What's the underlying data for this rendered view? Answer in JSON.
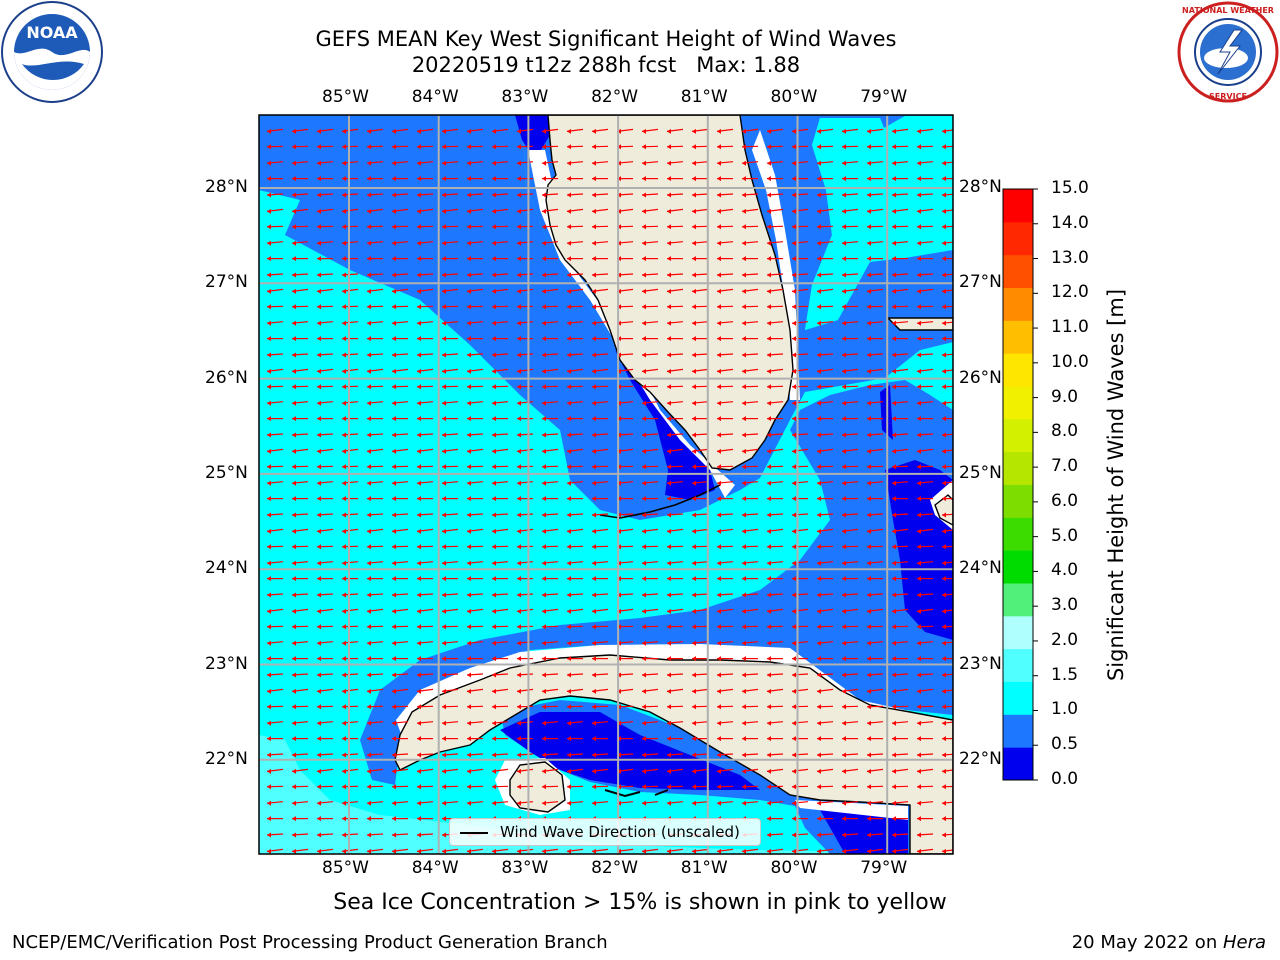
{
  "title": {
    "line1": "GEFS MEAN Key West Significant Height of Wind Waves",
    "line2": "20220519 t12z 288h fcst   Max: 1.88"
  },
  "logos": {
    "left": {
      "icon": "noaa-logo-icon",
      "text": "NOAA"
    },
    "right": {
      "icon": "nws-logo-icon",
      "text": "NATIONAL WEATHER SERVICE"
    }
  },
  "map": {
    "lon_labels": [
      "85°W",
      "84°W",
      "83°W",
      "82°W",
      "81°W",
      "80°W",
      "79°W"
    ],
    "lat_labels": [
      "28°N",
      "27°N",
      "26°N",
      "25°N",
      "24°N",
      "23°N",
      "22°N"
    ],
    "land_color": "#efecdc",
    "arrow_color": "#ff0000",
    "gridline_color": "#b0b0b0",
    "legend_label": "Wind Wave Direction (unscaled)"
  },
  "colorbar": {
    "title": "Significant Height of Wind Waves [m]",
    "tick_labels": [
      "0.0",
      "0.5",
      "1.0",
      "1.5",
      "2.0",
      "3.0",
      "4.0",
      "5.0",
      "6.0",
      "7.0",
      "8.0",
      "9.0",
      "10.0",
      "11.0",
      "12.0",
      "13.0",
      "14.0",
      "15.0"
    ],
    "colors": [
      "#0000ee",
      "#1e78ff",
      "#00ffff",
      "#50ffff",
      "#b0ffff",
      "#50f07a",
      "#00dc00",
      "#3cdc00",
      "#7ddc00",
      "#b4e600",
      "#d2f000",
      "#f0f000",
      "#ffe600",
      "#ffbe00",
      "#ff8c00",
      "#ff5000",
      "#ff2800",
      "#ff0000"
    ]
  },
  "chart_data": {
    "type": "heatmap",
    "title": "GEFS MEAN Key West Significant Height of Wind Waves",
    "subtitle": "20220519 t12z 288h fcst   Max: 1.88",
    "xlabel": "",
    "ylabel": "",
    "x_ticks": [
      "85°W",
      "84°W",
      "83°W",
      "82°W",
      "81°W",
      "80°W",
      "79°W"
    ],
    "y_ticks": [
      "28°N",
      "27°N",
      "26°N",
      "25°N",
      "24°N",
      "23°N",
      "22°N"
    ],
    "colorbar_label": "Significant Height of Wind Waves [m]",
    "colorbar_range": [
      0,
      15
    ],
    "max_value": 1.88,
    "grid": true,
    "legend": "bottom-center"
  },
  "footer": {
    "note": "Sea Ice Concentration > 15% is shown in pink to yellow",
    "credit_left": "NCEP/EMC/Verification Post Processing Product Generation Branch",
    "credit_date": "20 May 2022 on ",
    "credit_machine": "Hera"
  }
}
